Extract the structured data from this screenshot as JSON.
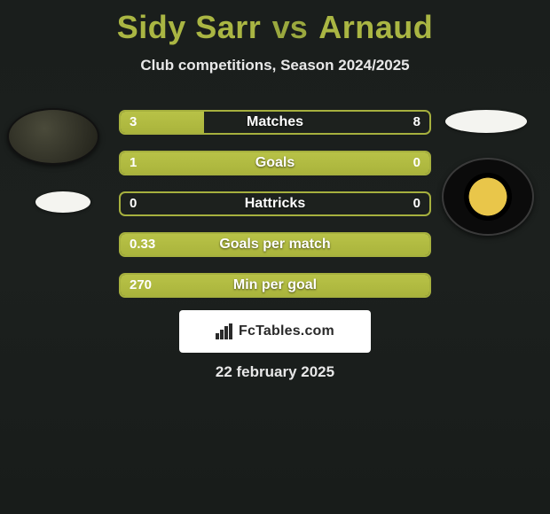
{
  "header": {
    "player_left": "Sidy Sarr",
    "vs": "vs",
    "player_right": "Arnaud",
    "subtitle": "Club competitions, Season 2024/2025"
  },
  "colors": {
    "accent": "#aab43c",
    "accent_border": "#a6b03e",
    "title": "#aab643",
    "background_dark": "#1d211e",
    "text": "#ffffff"
  },
  "bars": [
    {
      "label": "Matches",
      "left": "3",
      "right": "8",
      "fill_pct": 27
    },
    {
      "label": "Goals",
      "left": "1",
      "right": "0",
      "fill_pct": 100
    },
    {
      "label": "Hattricks",
      "left": "0",
      "right": "0",
      "fill_pct": 0
    },
    {
      "label": "Goals per match",
      "left": "0.33",
      "right": "",
      "fill_pct": 100
    },
    {
      "label": "Min per goal",
      "left": "270",
      "right": "",
      "fill_pct": 100
    }
  ],
  "attribution": "FcTables.com",
  "date": "22 february 2025"
}
